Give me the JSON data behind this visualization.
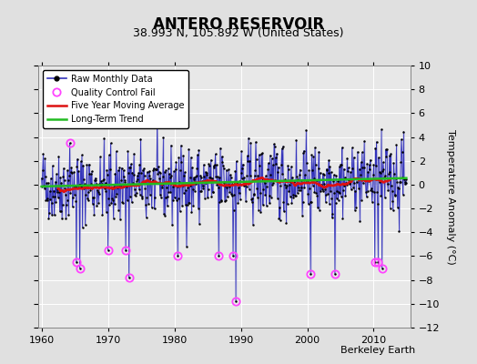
{
  "title": "ANTERO RESERVOIR",
  "subtitle": "38.993 N, 105.892 W (United States)",
  "ylabel": "Temperature Anomaly (°C)",
  "credit": "Berkeley Earth",
  "xlim": [
    1959.5,
    2015.5
  ],
  "ylim": [
    -12,
    10
  ],
  "yticks": [
    -12,
    -10,
    -8,
    -6,
    -4,
    -2,
    0,
    2,
    4,
    6,
    8,
    10
  ],
  "xticks": [
    1960,
    1970,
    1980,
    1990,
    2000,
    2010
  ],
  "bg_color": "#e8e8e8",
  "grid_color": "#ffffff",
  "line_color": "#3333bb",
  "fill_color": "#9999dd",
  "ma_color": "#dd1111",
  "trend_color": "#22bb22",
  "qc_color": "#ff44ff",
  "title_fontsize": 12,
  "subtitle_fontsize": 9,
  "tick_fontsize": 8,
  "ylabel_fontsize": 8,
  "legend_fontsize": 7,
  "credit_fontsize": 8,
  "seed": 42,
  "n_years": 55,
  "start_year": 1960,
  "qc_fail_indices": [
    63,
    69,
    120,
    152,
    158,
    246,
    320,
    346,
    351,
    486,
    530,
    602,
    608,
    615,
    51
  ],
  "qc_values": [
    -6.5,
    -7.0,
    -5.5,
    -5.5,
    -7.8,
    -6.0,
    -6.0,
    -6.0,
    -9.8,
    -7.5,
    -7.5,
    -6.5,
    -6.5,
    -7.0,
    3.5
  ]
}
